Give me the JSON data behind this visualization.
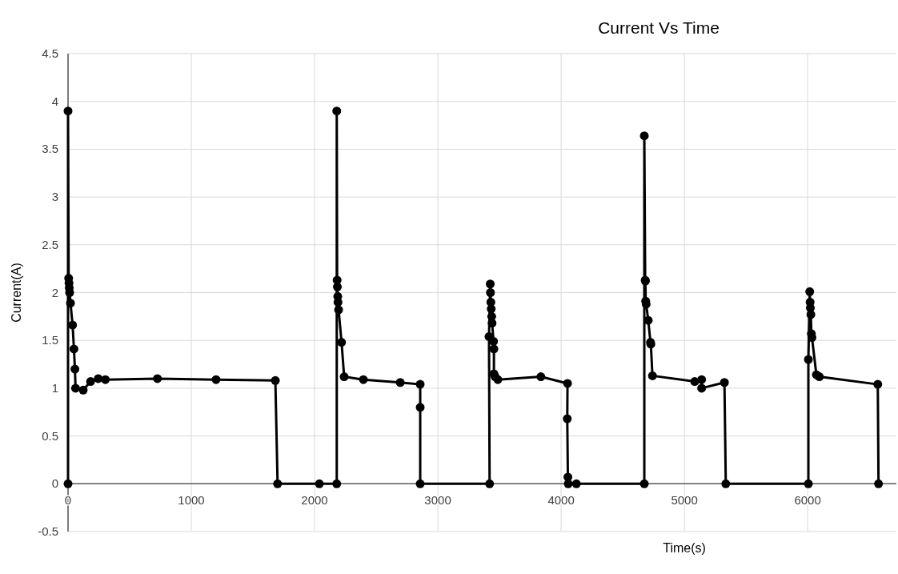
{
  "chart_data": {
    "type": "line",
    "title": "Current Vs Time",
    "xlabel": "Time(s)",
    "ylabel": "Current(A)",
    "series": [
      {
        "color": "#000000",
        "x": [
          0,
          0,
          5,
          8,
          10,
          13,
          20,
          37,
          48,
          56,
          61,
          123,
          183,
          245,
          303,
          725,
          1201,
          1682,
          1700,
          2039,
          2180,
          2180,
          2183,
          2185,
          2188,
          2190,
          2195,
          2219,
          2240,
          2396,
          2695,
          2857,
          2857,
          2857,
          3420,
          3415,
          3425,
          3427,
          3430,
          3433,
          3437,
          3440,
          3452,
          3455,
          3455,
          3465,
          3487,
          3836,
          4052,
          4050,
          4055,
          4058,
          4124,
          4675,
          4675,
          4682,
          4684,
          4686,
          4690,
          4707,
          4725,
          4728,
          4741,
          5084,
          5140,
          5140,
          5325,
          5336,
          6006,
          6006,
          6017,
          6020,
          6022,
          6026,
          6030,
          6035,
          6071,
          6095,
          6569,
          6575
        ],
        "values": [
          0,
          3.9,
          2.15,
          2.1,
          2.05,
          2.0,
          1.89,
          1.66,
          1.41,
          1.2,
          1.0,
          0.98,
          1.07,
          1.1,
          1.09,
          1.1,
          1.09,
          1.08,
          0,
          0,
          0,
          3.9,
          2.13,
          2.06,
          1.96,
          1.9,
          1.82,
          1.48,
          1.12,
          1.09,
          1.06,
          1.04,
          0.8,
          0,
          0,
          1.54,
          2.09,
          2.0,
          1.9,
          1.83,
          1.75,
          1.68,
          1.49,
          1.41,
          1.15,
          1.12,
          1.09,
          1.12,
          1.05,
          0.68,
          0.07,
          0,
          0,
          0,
          3.64,
          2.13,
          2.12,
          1.91,
          1.88,
          1.71,
          1.48,
          1.46,
          1.13,
          1.07,
          1.09,
          1.0,
          1.06,
          0,
          0,
          1.3,
          2.01,
          1.9,
          1.84,
          1.77,
          1.57,
          1.53,
          1.14,
          1.12,
          1.04,
          0
        ]
      }
    ],
    "xlim": [
      0,
      6720
    ],
    "xticks": [
      0,
      1000,
      2000,
      3000,
      4000,
      5000,
      6000
    ],
    "ylim": [
      -0.5,
      4.5
    ],
    "yticks": [
      -0.5,
      0,
      0.5,
      1,
      1.5,
      2,
      2.5,
      3,
      3.5,
      4,
      4.5
    ],
    "grid": true,
    "marker": "circle",
    "line_style": "solid"
  }
}
